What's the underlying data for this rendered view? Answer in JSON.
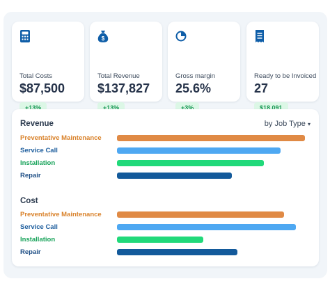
{
  "kpis": [
    {
      "icon": "calculator-icon",
      "label": "Total Costs",
      "value": "$87,500",
      "badge": "+13%"
    },
    {
      "icon": "money-bag-icon",
      "label": "Total Revenue",
      "value": "$137,827",
      "badge": "+13%"
    },
    {
      "icon": "pie-chart-icon",
      "label": "Gross margin",
      "value": "25.6%",
      "badge": "+3%"
    },
    {
      "icon": "receipt-icon",
      "label": "Ready to be Invoiced",
      "value": "27",
      "badge": "$18,091"
    }
  ],
  "colors": {
    "accent": "#0f5ea8",
    "badge_bg": "#dcf7e6",
    "badge_text": "#1a9a55",
    "preventative": "#e08a45",
    "service": "#4ea8f2",
    "installation": "#21d97a",
    "repair": "#135a9b"
  },
  "panel": {
    "filter_label": "by Job Type",
    "filter_caret": "▾"
  },
  "chart_data": [
    {
      "type": "bar",
      "orientation": "horizontal",
      "title": "Revenue",
      "categories": [
        "Preventative Maintenance",
        "Service Call",
        "Installation",
        "Repair"
      ],
      "values": [
        100,
        87,
        78,
        61
      ],
      "value_scale": "relative, percent of longest bar (no axis shown)"
    },
    {
      "type": "bar",
      "orientation": "horizontal",
      "title": "Cost",
      "categories": [
        "Preventative Maintenance",
        "Service Call",
        "Installation",
        "Repair"
      ],
      "values": [
        89,
        95,
        46,
        64
      ],
      "value_scale": "relative, percent of longest bar (no axis shown)"
    }
  ]
}
